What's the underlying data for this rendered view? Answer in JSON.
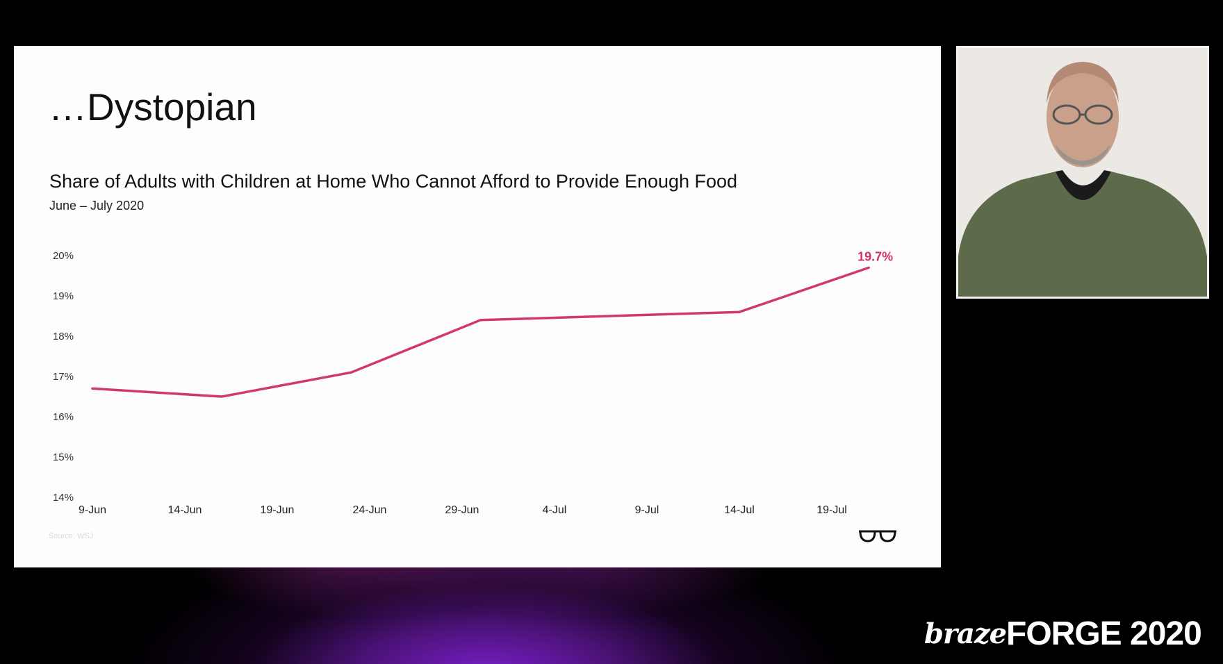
{
  "slide": {
    "title": "…Dystopian",
    "source": "Source: WSJ",
    "logo_icon": "glasses-icon"
  },
  "webcam": {
    "description_icon": "presenter-video-icon"
  },
  "brand": {
    "braze": "braze",
    "forge": "FORGE 2020"
  },
  "colors": {
    "line": "#d23a66",
    "label": "#d1335f",
    "slide_bg": "#fdfdfd",
    "page_bg": "#000000"
  },
  "chart_data": {
    "type": "line",
    "title": "Share of Adults with Children at Home Who Cannot Afford to Provide Enough Food",
    "subtitle": "June – July 2020",
    "xlabel": "",
    "ylabel": "",
    "x_tick_labels": [
      "9-Jun",
      "14-Jun",
      "19-Jun",
      "24-Jun",
      "29-Jun",
      "4-Jul",
      "9-Jul",
      "14-Jul",
      "19-Jul"
    ],
    "y_tick_labels": [
      "14%",
      "15%",
      "16%",
      "17%",
      "18%",
      "19%",
      "20%"
    ],
    "ylim": [
      14,
      20
    ],
    "xlim": [
      "2020-06-09",
      "2020-07-22"
    ],
    "grid": false,
    "series": [
      {
        "x": [
          "2020-06-09",
          "2020-06-16",
          "2020-06-23",
          "2020-06-30",
          "2020-07-07",
          "2020-07-14",
          "2020-07-21"
        ],
        "values": [
          16.7,
          16.5,
          17.1,
          18.4,
          18.5,
          18.6,
          19.7
        ]
      }
    ],
    "annotations": [
      {
        "x": "2020-07-21",
        "y": 19.7,
        "text": "19.7%"
      }
    ]
  }
}
